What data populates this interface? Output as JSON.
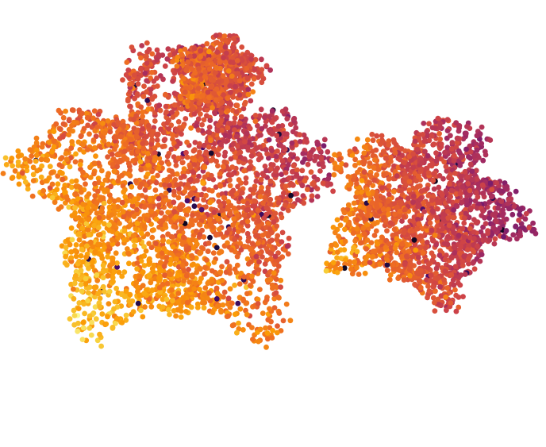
{
  "chart_data": {
    "type": "scatter",
    "title": "",
    "xlabel": "",
    "ylabel": "",
    "axes_visible": false,
    "grid": false,
    "legend": "none",
    "colormap": "inferno",
    "colormap_stops": [
      "#000004",
      "#1b0c41",
      "#4a0c6b",
      "#781c6d",
      "#a52c60",
      "#cf4446",
      "#ed6925",
      "#fb9b06",
      "#f7d13d",
      "#fcffa4"
    ],
    "xlim": [
      0,
      100
    ],
    "ylim": [
      0,
      100
    ],
    "clusters": [
      {
        "name": "left",
        "center": [
          32,
          56
        ],
        "radius": [
          31,
          37
        ],
        "value_base": 0.66,
        "value_gradient": [
          0.0045,
          0.004
        ],
        "points": 3600
      },
      {
        "name": "left-upper-arm",
        "center": [
          40,
          84
        ],
        "radius": [
          9,
          10
        ],
        "value_base": 0.62,
        "value_gradient": [
          0.006,
          0.002
        ],
        "points": 700
      },
      {
        "name": "right",
        "center": [
          78,
          53
        ],
        "radius": [
          20,
          23
        ],
        "value_base": 0.58,
        "value_gradient": [
          0.009,
          0.002
        ],
        "points": 2100
      }
    ]
  }
}
